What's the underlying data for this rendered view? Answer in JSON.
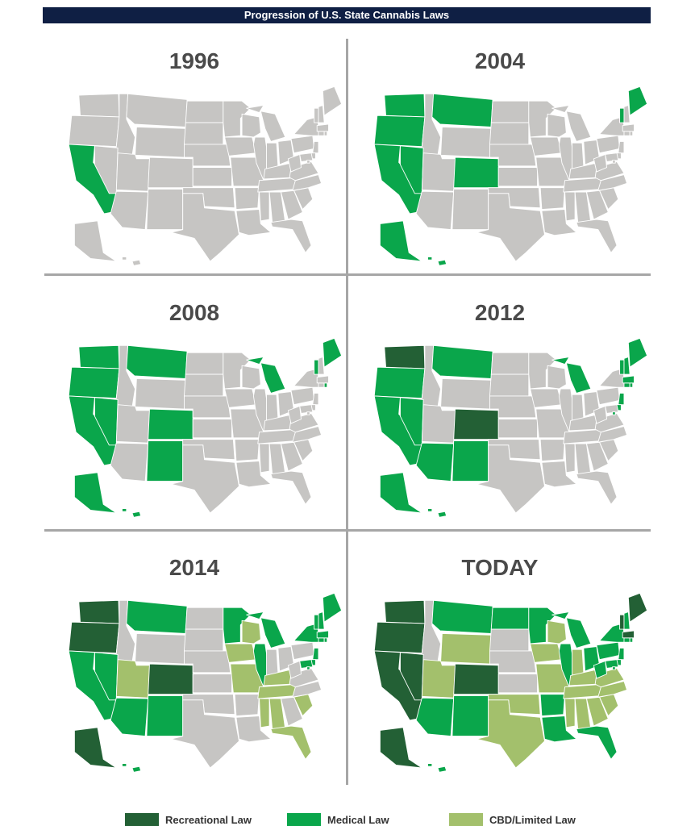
{
  "title": "Progression of U.S. State Cannabis Laws",
  "colors": {
    "none": "#c6c5c3",
    "recreational": "#236035",
    "medical": "#0aa64b",
    "cbd": "#a3c06c"
  },
  "legend": [
    {
      "key": "recreational",
      "label": "Recreational Law"
    },
    {
      "key": "medical",
      "label": "Medical Law"
    },
    {
      "key": "cbd",
      "label": "CBD/Limited Law"
    }
  ],
  "panels": [
    {
      "year": "1996",
      "states": {
        "CA": "medical"
      }
    },
    {
      "year": "2004",
      "states": {
        "WA": "medical",
        "OR": "medical",
        "CA": "medical",
        "NV": "medical",
        "MT": "medical",
        "CO": "medical",
        "ME": "medical",
        "VT": "medical",
        "AK": "medical",
        "HI": "medical"
      }
    },
    {
      "year": "2008",
      "states": {
        "WA": "medical",
        "OR": "medical",
        "CA": "medical",
        "NV": "medical",
        "MT": "medical",
        "CO": "medical",
        "NM": "medical",
        "MI": "medical",
        "ME": "medical",
        "VT": "medical",
        "RI": "medical",
        "AK": "medical",
        "HI": "medical"
      }
    },
    {
      "year": "2012",
      "states": {
        "WA": "recreational",
        "CO": "recreational",
        "OR": "medical",
        "CA": "medical",
        "NV": "medical",
        "MT": "medical",
        "AZ": "medical",
        "NM": "medical",
        "MI": "medical",
        "ME": "medical",
        "VT": "medical",
        "NH": "medical",
        "MA": "medical",
        "RI": "medical",
        "CT": "medical",
        "NJ": "medical",
        "DE": "medical",
        "DC": "medical",
        "AK": "medical",
        "HI": "medical"
      }
    },
    {
      "year": "2014",
      "states": {
        "WA": "recreational",
        "OR": "recreational",
        "CO": "recreational",
        "AK": "recreational",
        "CA": "medical",
        "NV": "medical",
        "MT": "medical",
        "AZ": "medical",
        "NM": "medical",
        "MN": "medical",
        "MI": "medical",
        "IL": "medical",
        "NY": "medical",
        "ME": "medical",
        "VT": "medical",
        "NH": "medical",
        "MA": "medical",
        "RI": "medical",
        "CT": "medical",
        "NJ": "medical",
        "DE": "medical",
        "MD": "medical",
        "DC": "medical",
        "HI": "medical",
        "UT": "cbd",
        "WI": "cbd",
        "IA": "cbd",
        "MO": "cbd",
        "KY": "cbd",
        "TN": "cbd",
        "MS": "cbd",
        "AL": "cbd",
        "SC": "cbd",
        "FL": "cbd"
      }
    },
    {
      "year": "TODAY",
      "states": {
        "WA": "recreational",
        "OR": "recreational",
        "CA": "recreational",
        "NV": "recreational",
        "CO": "recreational",
        "AK": "recreational",
        "ME": "recreational",
        "MA": "recreational",
        "VT": "recreational",
        "MT": "medical",
        "ND": "medical",
        "MN": "medical",
        "MI": "medical",
        "IL": "medical",
        "OH": "medical",
        "PA": "medical",
        "NY": "medical",
        "NH": "medical",
        "RI": "medical",
        "CT": "medical",
        "NJ": "medical",
        "DE": "medical",
        "MD": "medical",
        "WV": "medical",
        "DC": "medical",
        "AZ": "medical",
        "NM": "medical",
        "AR": "medical",
        "LA": "medical",
        "FL": "medical",
        "HI": "medical",
        "UT": "cbd",
        "WY": "cbd",
        "WI": "cbd",
        "IA": "cbd",
        "MO": "cbd",
        "OK": "cbd",
        "TX": "cbd",
        "IN": "cbd",
        "KY": "cbd",
        "TN": "cbd",
        "MS": "cbd",
        "AL": "cbd",
        "GA": "cbd",
        "SC": "cbd",
        "NC": "cbd",
        "VA": "cbd"
      }
    }
  ]
}
